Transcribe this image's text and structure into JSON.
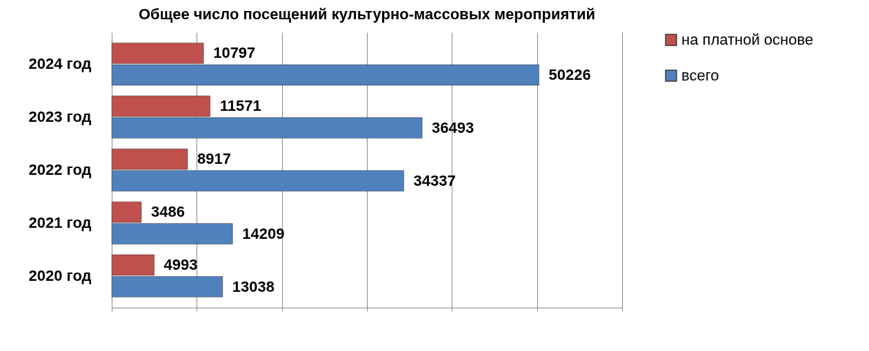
{
  "chart_data": {
    "type": "bar",
    "orientation": "horizontal",
    "title": "Общее число посещений культурно-массовых мероприятий",
    "categories": [
      "2024 год",
      "2023 год",
      "2022 год",
      "2021 год",
      "2020 год"
    ],
    "series": [
      {
        "name": "на платной основе",
        "color": "#c0504d",
        "values": [
          10797,
          11571,
          8917,
          3486,
          4993
        ]
      },
      {
        "name": "всего",
        "color": "#4f81bd",
        "values": [
          50226,
          36493,
          34337,
          14209,
          13038
        ]
      }
    ],
    "xlim": [
      0,
      60000
    ],
    "xticks": [
      {
        "value": 0,
        "label": null
      },
      {
        "value": 10000,
        "label": null
      },
      {
        "value": 20000,
        "label": null
      },
      {
        "value": 30000,
        "label": null
      },
      {
        "value": 40000,
        "label": null
      },
      {
        "value": 50000,
        "label": null
      },
      {
        "value": 60000,
        "label": null
      }
    ],
    "tick_labels": "y",
    "grid": "x",
    "legend": "right",
    "data_labels": true
  }
}
